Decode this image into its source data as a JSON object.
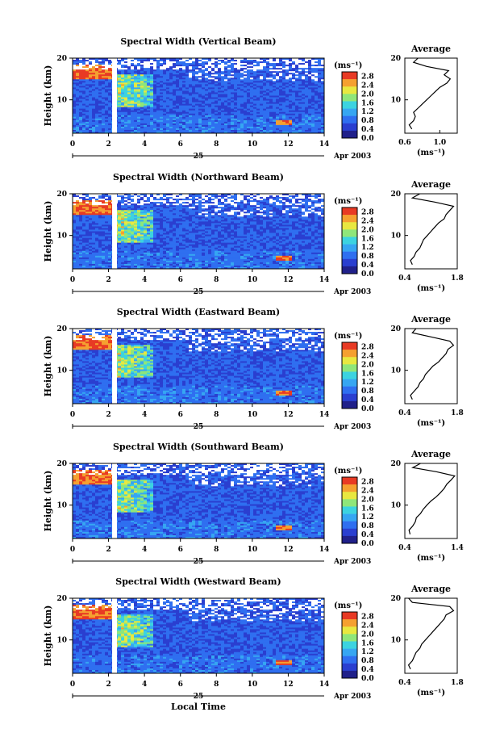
{
  "colorbar": {
    "unit": "(ms⁻¹)",
    "ticks": [
      "2.8",
      "2.4",
      "2.0",
      "1.6",
      "1.2",
      "0.8",
      "0.4",
      "0.0"
    ],
    "colors": [
      "#20208a",
      "#2a3fd0",
      "#2f6ff0",
      "#36a6f2",
      "#3cd3e0",
      "#8fe67a",
      "#e8e840",
      "#f5a030",
      "#e83a24"
    ]
  },
  "common": {
    "ylabel": "Height (km)",
    "y_ticks": [
      "20",
      "10"
    ],
    "x_ticks": [
      "0",
      "2",
      "4",
      "6",
      "8",
      "10",
      "12",
      "14"
    ],
    "day_label": "25",
    "date_label": "Apr 2003",
    "xlabel": "Local Time",
    "avg_title": "Average",
    "avg_unit": "(ms⁻¹)",
    "avg_y_ticks": [
      "20",
      "10"
    ]
  },
  "chart_data": [
    {
      "type": "heatmap",
      "title": "Spectral Width (Vertical Beam)",
      "x_range": [
        0,
        14
      ],
      "y_range": [
        2,
        20
      ],
      "avg_profile": {
        "type": "line",
        "x_ticks": [
          "0.6",
          "1.0"
        ],
        "xlim": [
          0.6,
          1.2
        ],
        "height": [
          3,
          4,
          5,
          6,
          7,
          8,
          9,
          10,
          11,
          12,
          13,
          14,
          15,
          16,
          17,
          18,
          19,
          20
        ],
        "value": [
          0.68,
          0.65,
          0.7,
          0.72,
          0.7,
          0.75,
          0.8,
          0.85,
          0.9,
          0.95,
          1.0,
          1.08,
          1.12,
          1.05,
          1.1,
          0.85,
          0.7,
          0.75
        ]
      }
    },
    {
      "type": "heatmap",
      "title": "Spectral Width (Northward Beam)",
      "x_range": [
        0,
        14
      ],
      "y_range": [
        2,
        20
      ],
      "avg_profile": {
        "type": "line",
        "x_ticks": [
          "0.4",
          "1.8"
        ],
        "xlim": [
          0.4,
          1.8
        ],
        "height": [
          3,
          4,
          5,
          6,
          7,
          8,
          9,
          10,
          11,
          12,
          13,
          14,
          15,
          16,
          17,
          18,
          19,
          20
        ],
        "value": [
          0.6,
          0.55,
          0.65,
          0.7,
          0.8,
          0.85,
          0.9,
          1.0,
          1.1,
          1.2,
          1.3,
          1.45,
          1.5,
          1.6,
          1.7,
          1.2,
          0.6,
          0.8
        ]
      }
    },
    {
      "type": "heatmap",
      "title": "Spectral Width (Eastward Beam)",
      "x_range": [
        0,
        14
      ],
      "y_range": [
        2,
        20
      ],
      "avg_profile": {
        "type": "line",
        "x_ticks": [
          "0.4",
          "1.8"
        ],
        "xlim": [
          0.4,
          1.8
        ],
        "height": [
          3,
          4,
          5,
          6,
          7,
          8,
          9,
          10,
          11,
          12,
          13,
          14,
          15,
          16,
          17,
          18,
          19,
          20
        ],
        "value": [
          0.6,
          0.55,
          0.65,
          0.75,
          0.8,
          0.9,
          0.95,
          1.05,
          1.15,
          1.3,
          1.4,
          1.5,
          1.55,
          1.7,
          1.6,
          1.1,
          0.6,
          0.7
        ]
      }
    },
    {
      "type": "heatmap",
      "title": "Spectral Width (Southward Beam)",
      "x_range": [
        0,
        14
      ],
      "y_range": [
        2,
        20
      ],
      "avg_profile": {
        "type": "line",
        "x_ticks": [
          "0.4",
          "1.4"
        ],
        "xlim": [
          0.4,
          1.4
        ],
        "height": [
          3,
          4,
          5,
          6,
          7,
          8,
          9,
          10,
          11,
          12,
          13,
          14,
          15,
          16,
          17,
          18,
          19,
          20
        ],
        "value": [
          0.5,
          0.48,
          0.55,
          0.6,
          0.62,
          0.7,
          0.75,
          0.82,
          0.9,
          1.0,
          1.08,
          1.15,
          1.2,
          1.28,
          1.35,
          1.0,
          0.55,
          0.7
        ]
      }
    },
    {
      "type": "heatmap",
      "title": "Spectral Width (Westward Beam)",
      "x_range": [
        0,
        14
      ],
      "y_range": [
        2,
        20
      ],
      "avg_profile": {
        "type": "line",
        "x_ticks": [
          "0.4",
          "1.8"
        ],
        "xlim": [
          0.4,
          1.8
        ],
        "height": [
          3,
          4,
          5,
          6,
          7,
          8,
          9,
          10,
          11,
          12,
          13,
          14,
          15,
          16,
          17,
          18,
          19,
          20
        ],
        "value": [
          0.55,
          0.5,
          0.6,
          0.65,
          0.7,
          0.8,
          0.85,
          0.95,
          1.05,
          1.15,
          1.25,
          1.35,
          1.45,
          1.5,
          1.7,
          1.6,
          0.6,
          0.5
        ]
      }
    }
  ]
}
